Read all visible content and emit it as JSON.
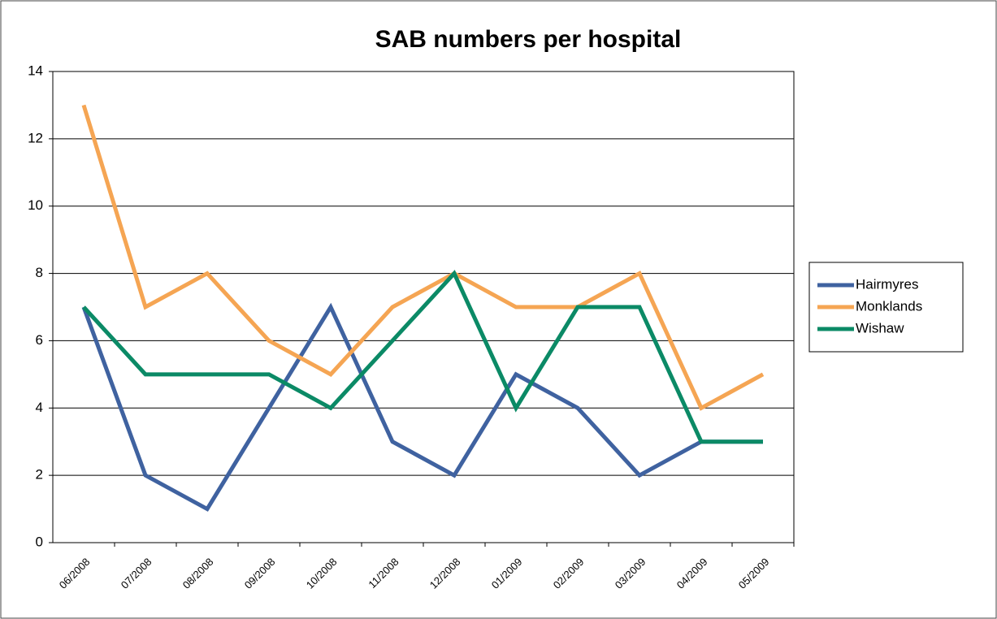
{
  "chart_data": {
    "type": "line",
    "title": "SAB numbers per hospital",
    "categories": [
      "06/2008",
      "07/2008",
      "08/2008",
      "09/2008",
      "10/2008",
      "11/2008",
      "12/2008",
      "01/2009",
      "02/2009",
      "03/2009",
      "04/2009",
      "05/2009"
    ],
    "series": [
      {
        "name": "Hairmyres",
        "color": "#3f62a0",
        "values": [
          7,
          2,
          1,
          4,
          7,
          3,
          2,
          5,
          4,
          2,
          3,
          3
        ]
      },
      {
        "name": "Monklands",
        "color": "#f5a553",
        "values": [
          13,
          7,
          8,
          6,
          5,
          7,
          8,
          7,
          7,
          8,
          4,
          5
        ]
      },
      {
        "name": "Wishaw",
        "color": "#0b8a66",
        "values": [
          7,
          5,
          5,
          5,
          4,
          6,
          8,
          4,
          7,
          7,
          3,
          3
        ]
      }
    ],
    "ylim": [
      0,
      14
    ],
    "yticks": [
      0,
      2,
      4,
      6,
      8,
      10,
      12,
      14
    ],
    "grid": true,
    "legend": "right"
  }
}
